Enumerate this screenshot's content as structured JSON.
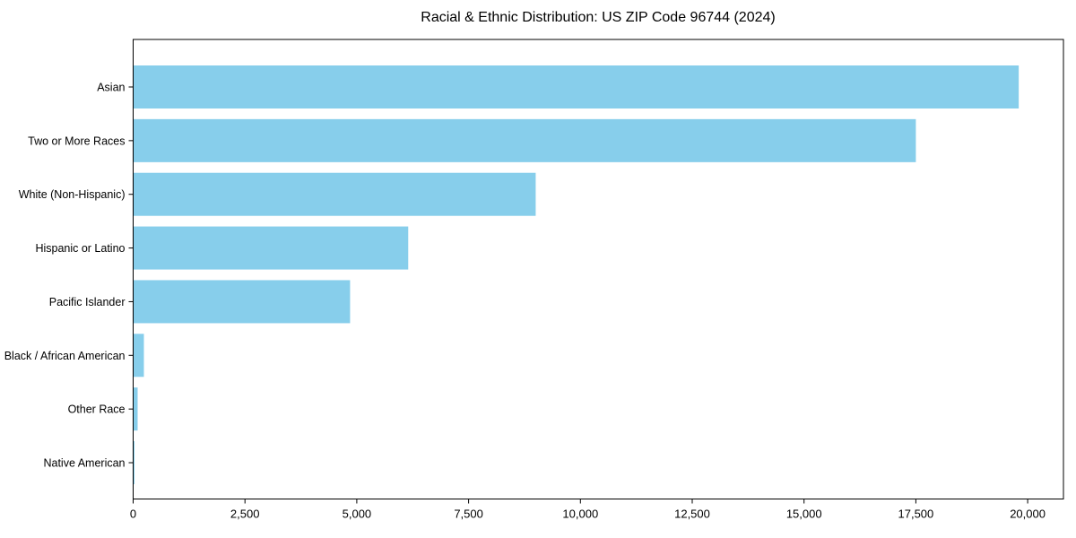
{
  "chart_data": {
    "type": "bar",
    "orientation": "horizontal",
    "title": "Racial & Ethnic Distribution: US ZIP Code 96744 (2024)",
    "categories": [
      "Asian",
      "Two or More Races",
      "White (Non-Hispanic)",
      "Hispanic or Latino",
      "Pacific Islander",
      "Black / African American",
      "Other Race",
      "Native American"
    ],
    "values": [
      19800,
      17500,
      9000,
      6150,
      4850,
      240,
      100,
      30
    ],
    "xlabel": "",
    "ylabel": "",
    "xlim": [
      0,
      20800
    ],
    "xticks": [
      0,
      2500,
      5000,
      7500,
      10000,
      12500,
      15000,
      17500,
      20000
    ],
    "xtick_labels": [
      "0",
      "2,500",
      "5,000",
      "7,500",
      "10,000",
      "12,500",
      "15,000",
      "17,500",
      "20,000"
    ],
    "grid": false,
    "legend_position": "none",
    "colors": {
      "bar": "#87CEEB",
      "axis": "#000000",
      "text": "#000000",
      "background": "#FFFFFF"
    }
  }
}
